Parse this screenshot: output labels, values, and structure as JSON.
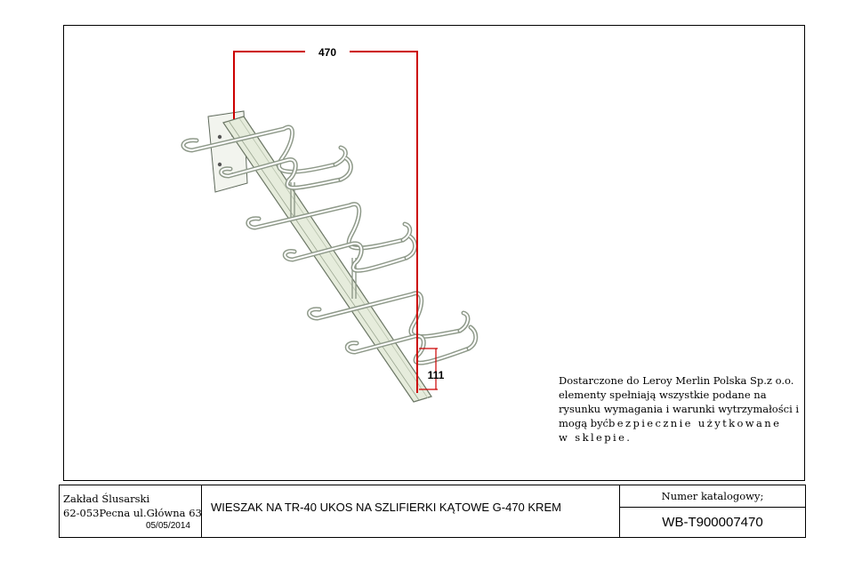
{
  "drawing": {
    "dimension_top": "470",
    "dimension_small": "111"
  },
  "note": {
    "line1": "Dostarczone do Leroy Merlin Polska Sp.z o.o.",
    "line2": "elementy spełniają wszystkie podane na",
    "line3": "rysunku wymagania i warunki wytrzymałości i",
    "line4a": "mogą być",
    "line4b": "bezpiecznie użytkowane",
    "line5": "w sklepie."
  },
  "title_block": {
    "company": "Zakład Ślusarski",
    "address": "62-053Pecna ul.Główna 63",
    "date": "05/05/2014",
    "description": "WIESZAK NA TR-40 UKOS  NA SZLIFIERKI KĄTOWE G-470 KREM",
    "catalog_label": "Numer katalogowy;",
    "catalog_number": "WB-T900007470"
  },
  "colors": {
    "dimension_line": "#cc0000",
    "beam_fill": "#e6ecdc",
    "wire": "#8f9a8a"
  }
}
